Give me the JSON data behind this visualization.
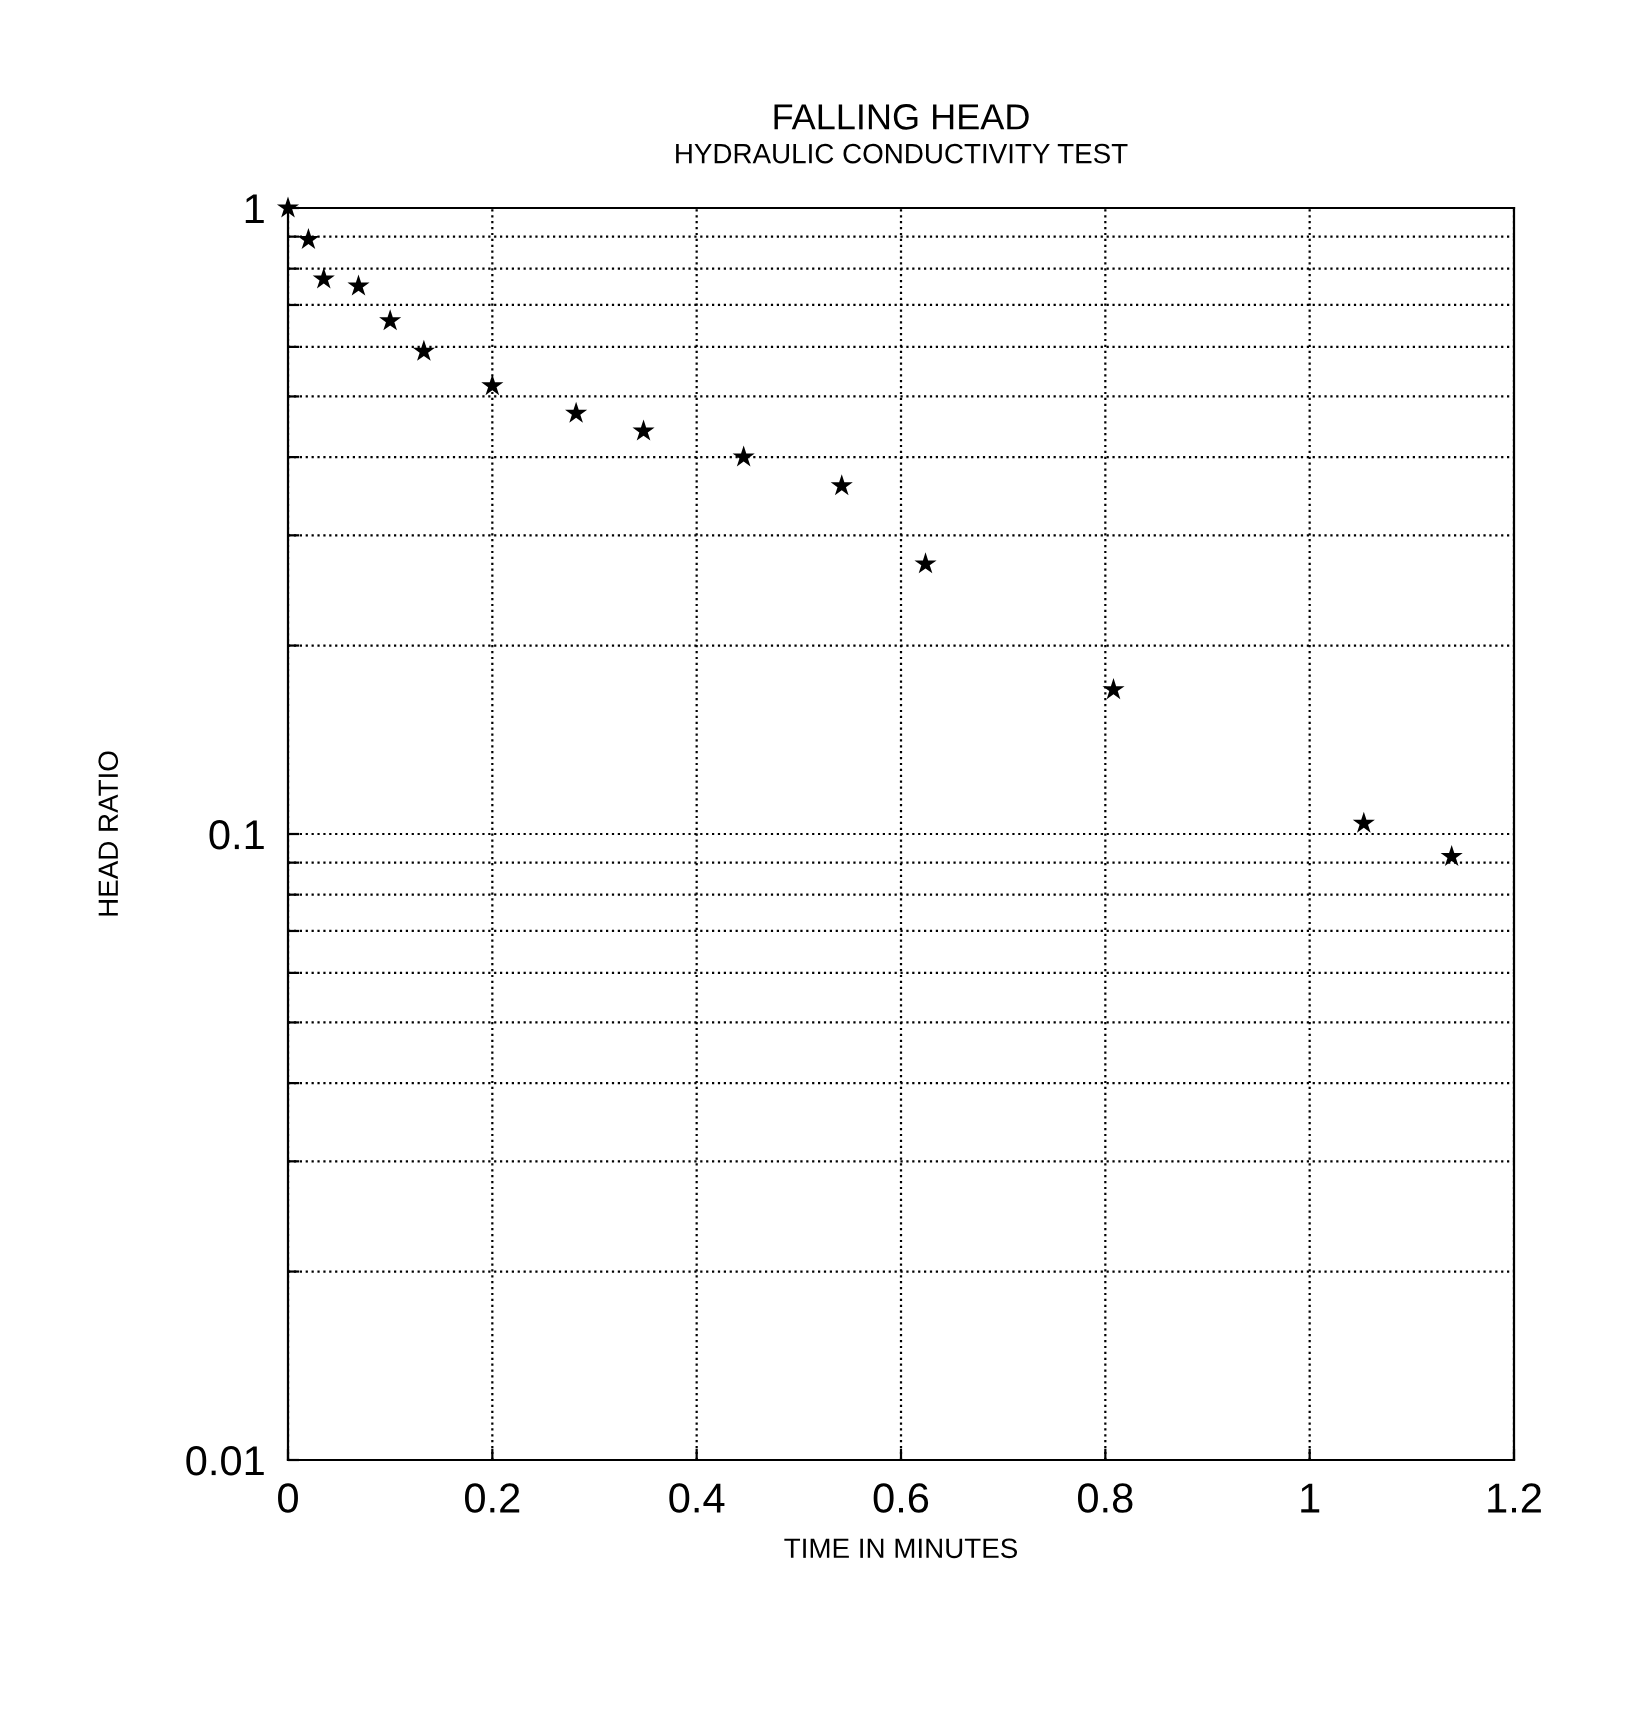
{
  "chart_data": {
    "type": "scatter",
    "title": "FALLING HEAD",
    "subtitle": "HYDRAULIC CONDUCTIVITY TEST",
    "xlabel": "TIME IN MINUTES",
    "ylabel": "HEAD RATIO",
    "x": [
      0,
      0.02,
      0.035,
      0.069,
      0.1,
      0.133,
      0.2,
      0.282,
      0.348,
      0.446,
      0.542,
      0.624,
      0.808,
      1.053,
      1.139
    ],
    "series": [
      {
        "color": "#000000",
        "values": [
          1,
          0.89,
          0.77,
          0.75,
          0.66,
          0.59,
          0.52,
          0.47,
          0.44,
          0.4,
          0.36,
          0.27,
          0.17,
          0.104,
          0.092
        ]
      }
    ],
    "log": "y",
    "xlim": [
      0,
      1.2
    ],
    "xticks": [
      0,
      0.2,
      0.4,
      0.6,
      0.8,
      1,
      1.2
    ],
    "ylim": [
      0.01,
      1
    ],
    "yticks": [
      {
        "value": 0.01,
        "label": "0.01"
      },
      {
        "value": 0.02,
        "label": null
      },
      {
        "value": 0.03,
        "label": null
      },
      {
        "value": 0.04,
        "label": null
      },
      {
        "value": 0.05,
        "label": null
      },
      {
        "value": 0.06,
        "label": null
      },
      {
        "value": 0.07,
        "label": null
      },
      {
        "value": 0.08,
        "label": null
      },
      {
        "value": 0.09,
        "label": null
      },
      {
        "value": 0.1,
        "label": "0.1"
      },
      {
        "value": 0.2,
        "label": null
      },
      {
        "value": 0.3,
        "label": null
      },
      {
        "value": 0.4,
        "label": null
      },
      {
        "value": 0.5,
        "label": null
      },
      {
        "value": 0.6,
        "label": null
      },
      {
        "value": 0.7,
        "label": null
      },
      {
        "value": 0.8,
        "label": null
      },
      {
        "value": 0.9,
        "label": null
      },
      {
        "value": 1,
        "label": "1"
      }
    ],
    "grid": true,
    "marker": "star",
    "legend": false
  }
}
